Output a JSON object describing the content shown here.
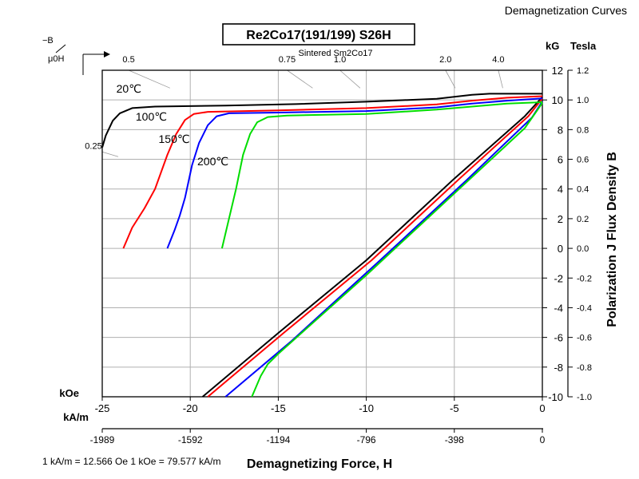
{
  "header": {
    "text": "Demagnetization Curves"
  },
  "chart_data": {
    "type": "line",
    "title": "Re2Co17(191/199) S26H",
    "subtitle": "Sintered Sm2Co17",
    "xlabel": "Demagnetizing Force, H",
    "ylabel": "Polarization J Flux Density B",
    "x_unit_koe": "kOe",
    "x_unit_kam": "kA/m",
    "y_unit_kg": "kG",
    "y_unit_tesla": "Tesla",
    "conversion_note": "1 kA/m = 12.566 Oe 1 kOe = 79.577 kA/m",
    "permeance_label_top": "−B",
    "permeance_label_bottom": "μ0H",
    "xlim": [
      -25,
      0
    ],
    "ylim": [
      -10,
      12
    ],
    "x_ticks_koe": [
      -25,
      -20,
      -15,
      -10,
      -5,
      0
    ],
    "x_ticks_kam": [
      {
        "label": "-1989",
        "koe": -25
      },
      {
        "label": "-1592",
        "koe": -20
      },
      {
        "label": "-1194",
        "koe": -15
      },
      {
        "label": "-796",
        "koe": -10
      },
      {
        "label": "-398",
        "koe": -5
      },
      {
        "label": "0",
        "koe": 0
      }
    ],
    "y_ticks_kg": [
      12,
      10,
      8,
      6,
      4,
      2,
      0,
      -2,
      -4,
      -6,
      -8,
      -10
    ],
    "y_ticks_tesla": [
      {
        "label": "1.2",
        "kg": 12
      },
      {
        "label": "1.0",
        "kg": 10
      },
      {
        "label": "0.8",
        "kg": 8
      },
      {
        "label": "0.6",
        "kg": 6
      },
      {
        "label": "0.4",
        "kg": 4
      },
      {
        "label": "0.2",
        "kg": 2
      },
      {
        "label": "0.0",
        "kg": 0
      },
      {
        "label": "-0.2",
        "kg": -2
      },
      {
        "label": "-0.4",
        "kg": -4
      },
      {
        "label": "-0.6",
        "kg": -6
      },
      {
        "label": "-0.8",
        "kg": -8
      },
      {
        "label": "-1.0",
        "kg": -10
      }
    ],
    "permeance_lines": [
      {
        "label": "0.5",
        "top_x": -23.5
      },
      {
        "label": "0.75",
        "top_x": -14.5
      },
      {
        "label": "1.0",
        "top_x": -11.5
      },
      {
        "label": "2.0",
        "top_x": -5.5
      },
      {
        "label": "4.0",
        "top_x": -2.5
      },
      {
        "label": "0.25",
        "left_y": 6.5
      }
    ],
    "grid": true,
    "series": [
      {
        "name": "20℃",
        "color": "#000000",
        "label_at": [
          -24.2,
          10.5
        ],
        "J": [
          [
            -25,
            6.8
          ],
          [
            -24.8,
            7.6
          ],
          [
            -24.4,
            8.6
          ],
          [
            -24.0,
            9.1
          ],
          [
            -23.3,
            9.45
          ],
          [
            -22,
            9.55
          ],
          [
            -18,
            9.62
          ],
          [
            -14,
            9.72
          ],
          [
            -10,
            9.88
          ],
          [
            -6,
            10.08
          ],
          [
            -4,
            10.35
          ],
          [
            -3,
            10.42
          ],
          [
            -1,
            10.42
          ],
          [
            0,
            10.42
          ]
        ],
        "B": [
          [
            -19.3,
            -10
          ],
          [
            -15,
            -5.7
          ],
          [
            -10,
            -0.8
          ],
          [
            -5,
            4.7
          ],
          [
            -1,
            8.9
          ],
          [
            0,
            10.2
          ]
        ]
      },
      {
        "name": "100℃",
        "color": "#ff0000",
        "label_at": [
          -23.1,
          8.6
        ],
        "J": [
          [
            -23.8,
            0
          ],
          [
            -23.3,
            1.4
          ],
          [
            -22.6,
            2.7
          ],
          [
            -22.0,
            4.0
          ],
          [
            -21.3,
            6.3
          ],
          [
            -20.8,
            7.7
          ],
          [
            -20.3,
            8.65
          ],
          [
            -19.8,
            9.05
          ],
          [
            -19,
            9.2
          ],
          [
            -15,
            9.3
          ],
          [
            -10,
            9.45
          ],
          [
            -6,
            9.7
          ],
          [
            -4,
            9.95
          ],
          [
            -2,
            10.15
          ],
          [
            0,
            10.25
          ]
        ],
        "B": [
          [
            -19.0,
            -10
          ],
          [
            -14.7,
            -5.7
          ],
          [
            -9.7,
            -0.8
          ],
          [
            -4.7,
            4.7
          ],
          [
            -0.8,
            8.9
          ],
          [
            0,
            10.1
          ]
        ]
      },
      {
        "name": "150℃",
        "color": "#0000ff",
        "label_at": [
          -21.8,
          7.1
        ],
        "J": [
          [
            -21.3,
            0
          ],
          [
            -20.9,
            1.2
          ],
          [
            -20.6,
            2.2
          ],
          [
            -20.3,
            3.4
          ],
          [
            -19.9,
            5.6
          ],
          [
            -19.5,
            7.1
          ],
          [
            -19.0,
            8.3
          ],
          [
            -18.5,
            8.9
          ],
          [
            -17.8,
            9.1
          ],
          [
            -15,
            9.15
          ],
          [
            -10,
            9.25
          ],
          [
            -6,
            9.5
          ],
          [
            -4,
            9.75
          ],
          [
            -2,
            9.95
          ],
          [
            0,
            10.1
          ]
        ],
        "B": [
          [
            -18.0,
            -10
          ],
          [
            -14.3,
            -6.3
          ],
          [
            -9.3,
            -0.9
          ],
          [
            -4.3,
            4.6
          ],
          [
            -0.6,
            8.8
          ],
          [
            0,
            9.9
          ]
        ]
      },
      {
        "name": "200℃",
        "color": "#00dd00",
        "label_at": [
          -19.6,
          5.6
        ],
        "J": [
          [
            -18.2,
            0
          ],
          [
            -17.8,
            2.0
          ],
          [
            -17.4,
            4.0
          ],
          [
            -17.0,
            6.3
          ],
          [
            -16.6,
            7.7
          ],
          [
            -16.2,
            8.5
          ],
          [
            -15.6,
            8.85
          ],
          [
            -14.5,
            8.95
          ],
          [
            -10,
            9.05
          ],
          [
            -6,
            9.35
          ],
          [
            -4,
            9.55
          ],
          [
            -2,
            9.75
          ],
          [
            0,
            9.85
          ]
        ],
        "B": [
          [
            -16.5,
            -10
          ],
          [
            -16.0,
            -8.6
          ],
          [
            -15.6,
            -7.8
          ],
          [
            -15,
            -7.1
          ],
          [
            -10,
            -1.8
          ],
          [
            -5,
            3.7
          ],
          [
            -1,
            8.1
          ],
          [
            0,
            9.8
          ]
        ]
      }
    ]
  }
}
